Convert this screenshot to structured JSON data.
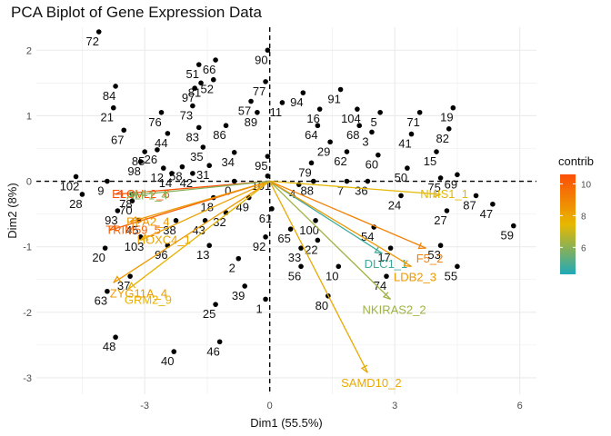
{
  "chart_data": {
    "type": "scatter",
    "title": "PCA Biplot of Gene Expression Data",
    "xlabel": "Dim1 (55.5%)",
    "ylabel": "Dim2 (8%)",
    "xlim": [
      -5.6,
      6.4
    ],
    "ylim": [
      -3.25,
      2.35
    ],
    "xticks": [
      -3,
      0,
      3,
      6
    ],
    "yticks": [
      -3,
      -2,
      -1,
      0,
      1,
      2
    ],
    "grid": true,
    "legend": {
      "title": "contrib",
      "position": "right",
      "ticks": [
        6,
        8,
        10
      ],
      "range": [
        4.3,
        10.6
      ]
    },
    "colors": {
      "low": "#20A9B8",
      "mid": "#E7B800",
      "high": "#FC4E07",
      "points": "#000000",
      "refline": "#000000"
    },
    "individuals": [
      {
        "label": "72",
        "x": -4.1,
        "y": 2.28
      },
      {
        "label": "90",
        "x": -0.05,
        "y": 2.0
      },
      {
        "label": "66",
        "x": -1.3,
        "y": 1.85
      },
      {
        "label": "51",
        "x": -1.7,
        "y": 1.78
      },
      {
        "label": "84",
        "x": -3.7,
        "y": 1.45
      },
      {
        "label": "52",
        "x": -1.35,
        "y": 1.55
      },
      {
        "label": "77",
        "x": -0.1,
        "y": 1.52
      },
      {
        "label": "81",
        "x": -1.65,
        "y": 1.5
      },
      {
        "label": "97",
        "x": -1.8,
        "y": 1.42
      },
      {
        "label": "94",
        "x": 0.8,
        "y": 1.35
      },
      {
        "label": "91",
        "x": 1.7,
        "y": 1.4
      },
      {
        "label": "57",
        "x": -0.45,
        "y": 1.22
      },
      {
        "label": "21",
        "x": -3.75,
        "y": 1.12
      },
      {
        "label": "104",
        "x": 2.1,
        "y": 1.1
      },
      {
        "label": "11",
        "x": 0.3,
        "y": 1.2
      },
      {
        "label": "16",
        "x": 1.2,
        "y": 1.1
      },
      {
        "label": "73",
        "x": -1.85,
        "y": 1.15
      },
      {
        "label": "89",
        "x": -0.3,
        "y": 1.05
      },
      {
        "label": "5",
        "x": 2.65,
        "y": 1.05
      },
      {
        "label": "71",
        "x": 3.6,
        "y": 1.05
      },
      {
        "label": "19",
        "x": 4.4,
        "y": 1.12
      },
      {
        "label": "76",
        "x": -2.6,
        "y": 1.05
      },
      {
        "label": "83",
        "x": -1.7,
        "y": 0.82
      },
      {
        "label": "64",
        "x": 1.15,
        "y": 0.85
      },
      {
        "label": "68",
        "x": 2.15,
        "y": 0.85
      },
      {
        "label": "86",
        "x": -1.05,
        "y": 0.85
      },
      {
        "label": "3",
        "x": 2.45,
        "y": 0.75
      },
      {
        "label": "41",
        "x": 3.4,
        "y": 0.72
      },
      {
        "label": "82",
        "x": 4.3,
        "y": 0.8
      },
      {
        "label": "67",
        "x": -3.5,
        "y": 0.78
      },
      {
        "label": "44",
        "x": -2.45,
        "y": 0.73
      },
      {
        "label": "29",
        "x": 1.45,
        "y": 0.6
      },
      {
        "label": "62",
        "x": 1.85,
        "y": 0.45
      },
      {
        "label": "35",
        "x": -1.6,
        "y": 0.52
      },
      {
        "label": "34",
        "x": -0.85,
        "y": 0.44
      },
      {
        "label": "95",
        "x": -0.05,
        "y": 0.38
      },
      {
        "label": "60",
        "x": 2.6,
        "y": 0.4
      },
      {
        "label": "15",
        "x": 4.0,
        "y": 0.45
      },
      {
        "label": "85",
        "x": -3.0,
        "y": 0.45
      },
      {
        "label": "26",
        "x": -2.7,
        "y": 0.48
      },
      {
        "label": "79",
        "x": 1.0,
        "y": 0.28
      },
      {
        "label": "102",
        "x": -4.65,
        "y": 0.07
      },
      {
        "label": "98",
        "x": -3.1,
        "y": 0.3
      },
      {
        "label": "58",
        "x": -2.1,
        "y": 0.22
      },
      {
        "label": "31",
        "x": -1.45,
        "y": 0.24
      },
      {
        "label": "50",
        "x": 3.3,
        "y": 0.2
      },
      {
        "label": "28",
        "x": -4.5,
        "y": -0.2
      },
      {
        "label": "9",
        "x": -3.9,
        "y": 0.0
      },
      {
        "label": "12",
        "x": -2.55,
        "y": 0.2
      },
      {
        "label": "14",
        "x": -2.35,
        "y": 0.12
      },
      {
        "label": "42",
        "x": -1.85,
        "y": 0.12
      },
      {
        "label": "0",
        "x": -0.85,
        "y": 0.0
      },
      {
        "label": "101",
        "x": -0.05,
        "y": 0.08
      },
      {
        "label": "4",
        "x": 0.7,
        "y": -0.05
      },
      {
        "label": "88",
        "x": 1.05,
        "y": 0.0
      },
      {
        "label": "7",
        "x": 1.85,
        "y": 0.0
      },
      {
        "label": "36",
        "x": 2.35,
        "y": 0.0
      },
      {
        "label": "75",
        "x": 4.1,
        "y": 0.05
      },
      {
        "label": "69",
        "x": 4.5,
        "y": 0.1
      },
      {
        "label": "70",
        "x": -3.3,
        "y": -0.3
      },
      {
        "label": "78",
        "x": -3.3,
        "y": -0.2
      },
      {
        "label": "18",
        "x": -1.35,
        "y": -0.25
      },
      {
        "label": "49",
        "x": -0.5,
        "y": -0.25
      },
      {
        "label": "24",
        "x": 3.15,
        "y": -0.22
      },
      {
        "label": "87",
        "x": 4.95,
        "y": -0.22
      },
      {
        "label": "47",
        "x": 5.35,
        "y": -0.35
      },
      {
        "label": "93",
        "x": -3.65,
        "y": -0.45
      },
      {
        "label": "32",
        "x": -1.05,
        "y": -0.48
      },
      {
        "label": "61",
        "x": 0.05,
        "y": -0.42
      },
      {
        "label": "27",
        "x": 4.25,
        "y": -0.45
      },
      {
        "label": "59",
        "x": 5.85,
        "y": -0.68
      },
      {
        "label": "45",
        "x": -3.15,
        "y": -0.6
      },
      {
        "label": "38",
        "x": -2.25,
        "y": -0.6
      },
      {
        "label": "43",
        "x": -1.55,
        "y": -0.6
      },
      {
        "label": "100",
        "x": 1.1,
        "y": -0.6
      },
      {
        "label": "54",
        "x": 2.5,
        "y": -0.7
      },
      {
        "label": "103",
        "x": -3.1,
        "y": -0.85
      },
      {
        "label": "65",
        "x": 0.5,
        "y": -0.73
      },
      {
        "label": "92",
        "x": -0.1,
        "y": -0.85
      },
      {
        "label": "96",
        "x": -2.45,
        "y": -0.98
      },
      {
        "label": "13",
        "x": -1.45,
        "y": -0.98
      },
      {
        "label": "20",
        "x": -3.95,
        "y": -1.02
      },
      {
        "label": "22",
        "x": 1.15,
        "y": -0.9
      },
      {
        "label": "33",
        "x": 0.75,
        "y": -1.02
      },
      {
        "label": "53",
        "x": 4.1,
        "y": -0.98
      },
      {
        "label": "17",
        "x": 2.9,
        "y": -1.02
      },
      {
        "label": "2",
        "x": -0.75,
        "y": -1.18
      },
      {
        "label": "55",
        "x": 4.5,
        "y": -1.3
      },
      {
        "label": "56",
        "x": 0.75,
        "y": -1.3
      },
      {
        "label": "10",
        "x": 1.65,
        "y": -1.3
      },
      {
        "label": "37",
        "x": -3.35,
        "y": -1.45
      },
      {
        "label": "74",
        "x": 2.8,
        "y": -1.45
      },
      {
        "label": "39",
        "x": -0.6,
        "y": -1.6
      },
      {
        "label": "63",
        "x": -3.9,
        "y": -1.68
      },
      {
        "label": "1",
        "x": -0.1,
        "y": -1.8
      },
      {
        "label": "80",
        "x": 1.4,
        "y": -1.75
      },
      {
        "label": "25",
        "x": -1.3,
        "y": -1.88
      },
      {
        "label": "48",
        "x": -3.7,
        "y": -2.38
      },
      {
        "label": "46",
        "x": -1.2,
        "y": -2.45
      },
      {
        "label": "40",
        "x": -2.3,
        "y": -2.6
      }
    ],
    "variables": [
      {
        "label": "ELOVL2_6",
        "x": -3.7,
        "y": -0.2,
        "contrib": 10.5
      },
      {
        "label": "TRIM59_5",
        "x": -3.85,
        "y": -0.75,
        "contrib": 10.0
      },
      {
        "label": "RPA2_4",
        "x": -3.35,
        "y": -0.62,
        "contrib": 8.4
      },
      {
        "label": "HOXC4_1",
        "x": -3.1,
        "y": -0.9,
        "contrib": 8.1
      },
      {
        "label": "ZYG11A_4",
        "x": -3.75,
        "y": -1.55,
        "contrib": 8.3
      },
      {
        "label": "GRM2_9",
        "x": -3.4,
        "y": -1.65,
        "contrib": 7.6
      },
      {
        "label": "ALF1_4",
        "x": -3.35,
        "y": -0.22,
        "contrib": 5.9
      },
      {
        "label": "NHIS1_1",
        "x": 4.1,
        "y": -0.2,
        "contrib": 7.4
      },
      {
        "label": "DLC1_1",
        "x": 2.7,
        "y": -1.1,
        "contrib": 4.8
      },
      {
        "label": "F5_2",
        "x": 3.75,
        "y": -1.02,
        "contrib": 9.1
      },
      {
        "label": "LDB2_3",
        "x": 3.4,
        "y": -1.3,
        "contrib": 8.4
      },
      {
        "label": "NKIRAS2_2",
        "x": 2.9,
        "y": -1.8,
        "contrib": 6.3
      },
      {
        "label": "SAMD10_2",
        "x": 2.35,
        "y": -2.92,
        "contrib": 7.9
      }
    ]
  }
}
